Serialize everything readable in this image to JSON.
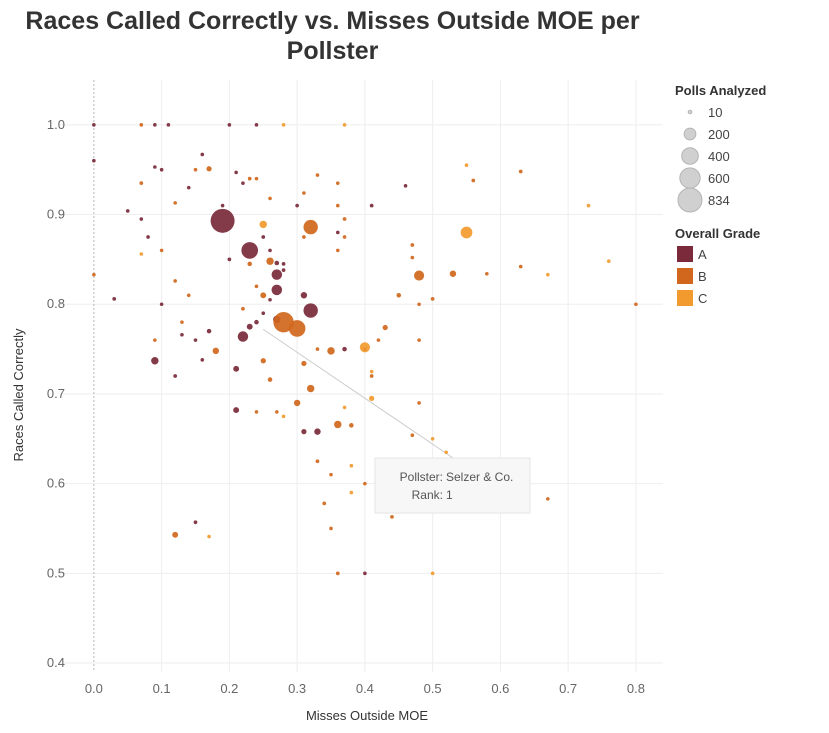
{
  "chart_data": {
    "type": "scatter",
    "title": "Races Called Correctly vs. Misses Outside MOE per Pollster",
    "xlabel": "Misses Outside MOE",
    "ylabel": "Races Called Correctly",
    "xlim": [
      -0.05,
      0.84
    ],
    "ylim": [
      0.39,
      1.05
    ],
    "xticks": [
      "0.0",
      "0.1",
      "0.2",
      "0.3",
      "0.4",
      "0.5",
      "0.6",
      "0.7",
      "0.8"
    ],
    "yticks": [
      "0.4",
      "0.5",
      "0.6",
      "0.7",
      "0.8",
      "0.9",
      "1.0"
    ],
    "grid": true,
    "legend_position": "right",
    "size_legend": {
      "title": "Polls Analyzed",
      "entries": [
        {
          "label": "10",
          "value": 10
        },
        {
          "label": "200",
          "value": 200
        },
        {
          "label": "400",
          "value": 400
        },
        {
          "label": "600",
          "value": 600
        },
        {
          "label": "834",
          "value": 834
        }
      ]
    },
    "color_legend": {
      "title": "Overall Grade",
      "entries": [
        {
          "label": "A",
          "color": "#7a2a3a"
        },
        {
          "label": "B",
          "color": "#d0671c"
        },
        {
          "label": "C",
          "color": "#f29a2e"
        }
      ]
    },
    "tooltip": {
      "pollster_label": "Pollster:",
      "pollster_value": "Selzer & Co.",
      "rank_label": "Rank:",
      "rank_value": "1",
      "x": 0.25,
      "y": 0.772
    },
    "series": [
      {
        "name": "A",
        "points": [
          [
            0.0,
            1.0,
            10
          ],
          [
            0.0,
            0.96,
            10
          ],
          [
            0.09,
            1.0,
            10
          ],
          [
            0.11,
            1.0,
            15
          ],
          [
            0.2,
            1.0,
            15
          ],
          [
            0.24,
            1.0,
            10
          ],
          [
            0.03,
            0.806,
            20
          ],
          [
            0.05,
            0.904,
            15
          ],
          [
            0.08,
            0.875,
            10
          ],
          [
            0.07,
            0.895,
            15
          ],
          [
            0.09,
            0.953,
            10
          ],
          [
            0.1,
            0.95,
            10
          ],
          [
            0.14,
            0.93,
            15
          ],
          [
            0.16,
            0.967,
            15
          ],
          [
            0.19,
            0.91,
            10
          ],
          [
            0.21,
            0.947,
            10
          ],
          [
            0.22,
            0.935,
            10
          ],
          [
            0.2,
            0.85,
            20
          ],
          [
            0.19,
            0.893,
            834
          ],
          [
            0.23,
            0.86,
            400
          ],
          [
            0.25,
            0.875,
            20
          ],
          [
            0.26,
            0.86,
            10
          ],
          [
            0.27,
            0.846,
            30
          ],
          [
            0.28,
            0.845,
            20
          ],
          [
            0.28,
            0.838,
            20
          ],
          [
            0.27,
            0.833,
            160
          ],
          [
            0.27,
            0.816,
            160
          ],
          [
            0.26,
            0.805,
            10
          ],
          [
            0.25,
            0.79,
            10
          ],
          [
            0.24,
            0.78,
            30
          ],
          [
            0.23,
            0.775,
            50
          ],
          [
            0.22,
            0.764,
            160
          ],
          [
            0.27,
            0.783,
            80
          ],
          [
            0.31,
            0.81,
            60
          ],
          [
            0.32,
            0.793,
            300
          ],
          [
            0.3,
            0.91,
            10
          ],
          [
            0.36,
            0.88,
            10
          ],
          [
            0.41,
            0.91,
            20
          ],
          [
            0.46,
            0.932,
            15
          ],
          [
            0.09,
            0.737,
            80
          ],
          [
            0.1,
            0.8,
            10
          ],
          [
            0.12,
            0.72,
            20
          ],
          [
            0.13,
            0.766,
            10
          ],
          [
            0.15,
            0.76,
            10
          ],
          [
            0.16,
            0.738,
            10
          ],
          [
            0.17,
            0.77,
            30
          ],
          [
            0.21,
            0.728,
            50
          ],
          [
            0.21,
            0.682,
            50
          ],
          [
            0.31,
            0.658,
            40
          ],
          [
            0.33,
            0.658,
            60
          ],
          [
            0.37,
            0.75,
            30
          ],
          [
            0.4,
            0.75,
            15
          ],
          [
            0.4,
            0.5,
            10
          ],
          [
            0.43,
            0.57,
            10
          ],
          [
            0.15,
            0.557,
            20
          ]
        ]
      },
      {
        "name": "B",
        "points": [
          [
            0.0,
            0.833,
            10
          ],
          [
            0.07,
            0.935,
            20
          ],
          [
            0.07,
            1.0,
            15
          ],
          [
            0.12,
            0.913,
            15
          ],
          [
            0.15,
            0.95,
            10
          ],
          [
            0.17,
            0.951,
            40
          ],
          [
            0.23,
            0.94,
            20
          ],
          [
            0.24,
            0.94,
            15
          ],
          [
            0.1,
            0.86,
            10
          ],
          [
            0.12,
            0.826,
            10
          ],
          [
            0.13,
            0.78,
            15
          ],
          [
            0.14,
            0.81,
            10
          ],
          [
            0.18,
            0.748,
            60
          ],
          [
            0.22,
            0.795,
            20
          ],
          [
            0.23,
            0.845,
            30
          ],
          [
            0.24,
            0.82,
            20
          ],
          [
            0.25,
            0.81,
            50
          ],
          [
            0.26,
            0.848,
            80
          ],
          [
            0.28,
            0.78,
            600
          ],
          [
            0.3,
            0.773,
            400
          ],
          [
            0.32,
            0.886,
            300
          ],
          [
            0.31,
            0.875,
            20
          ],
          [
            0.33,
            0.944,
            15
          ],
          [
            0.36,
            0.91,
            10
          ],
          [
            0.36,
            0.86,
            15
          ],
          [
            0.37,
            0.895,
            20
          ],
          [
            0.37,
            0.875,
            15
          ],
          [
            0.35,
            0.748,
            80
          ],
          [
            0.33,
            0.75,
            15
          ],
          [
            0.31,
            0.734,
            40
          ],
          [
            0.32,
            0.706,
            80
          ],
          [
            0.3,
            0.69,
            60
          ],
          [
            0.25,
            0.737,
            40
          ],
          [
            0.26,
            0.716,
            30
          ],
          [
            0.24,
            0.68,
            15
          ],
          [
            0.27,
            0.68,
            15
          ],
          [
            0.36,
            0.666,
            80
          ],
          [
            0.38,
            0.665,
            30
          ],
          [
            0.33,
            0.625,
            20
          ],
          [
            0.35,
            0.61,
            15
          ],
          [
            0.34,
            0.578,
            20
          ],
          [
            0.35,
            0.55,
            15
          ],
          [
            0.36,
            0.5,
            20
          ],
          [
            0.4,
            0.6,
            15
          ],
          [
            0.41,
            0.72,
            20
          ],
          [
            0.42,
            0.76,
            15
          ],
          [
            0.43,
            0.774,
            40
          ],
          [
            0.45,
            0.81,
            30
          ],
          [
            0.47,
            0.852,
            15
          ],
          [
            0.47,
            0.866,
            20
          ],
          [
            0.48,
            0.8,
            15
          ],
          [
            0.48,
            0.76,
            15
          ],
          [
            0.48,
            0.832,
            150
          ],
          [
            0.5,
            0.806,
            20
          ],
          [
            0.53,
            0.834,
            60
          ],
          [
            0.56,
            0.938,
            20
          ],
          [
            0.58,
            0.834,
            15
          ],
          [
            0.63,
            0.948,
            20
          ],
          [
            0.63,
            0.842,
            15
          ],
          [
            0.48,
            0.69,
            15
          ],
          [
            0.47,
            0.654,
            15
          ],
          [
            0.44,
            0.563,
            20
          ],
          [
            0.67,
            0.583,
            15
          ],
          [
            0.8,
            0.8,
            15
          ],
          [
            0.12,
            0.543,
            50
          ],
          [
            0.26,
            0.918,
            10
          ],
          [
            0.36,
            0.935,
            10
          ],
          [
            0.31,
            0.924,
            15
          ],
          [
            0.09,
            0.76,
            10
          ]
        ]
      },
      {
        "name": "C",
        "points": [
          [
            0.28,
            1.0,
            10
          ],
          [
            0.37,
            1.0,
            10
          ],
          [
            0.25,
            0.889,
            80
          ],
          [
            0.55,
            0.88,
            200
          ],
          [
            0.4,
            0.752,
            150
          ],
          [
            0.41,
            0.695,
            40
          ],
          [
            0.41,
            0.725,
            15
          ],
          [
            0.37,
            0.685,
            15
          ],
          [
            0.28,
            0.675,
            15
          ],
          [
            0.5,
            0.65,
            10
          ],
          [
            0.52,
            0.635,
            10
          ],
          [
            0.38,
            0.62,
            15
          ],
          [
            0.5,
            0.5,
            10
          ],
          [
            0.67,
            0.833,
            10
          ],
          [
            0.73,
            0.91,
            10
          ],
          [
            0.76,
            0.848,
            15
          ],
          [
            0.55,
            0.955,
            10
          ],
          [
            0.17,
            0.541,
            10
          ],
          [
            0.38,
            0.59,
            15
          ],
          [
            0.07,
            0.856,
            10
          ]
        ]
      }
    ]
  }
}
